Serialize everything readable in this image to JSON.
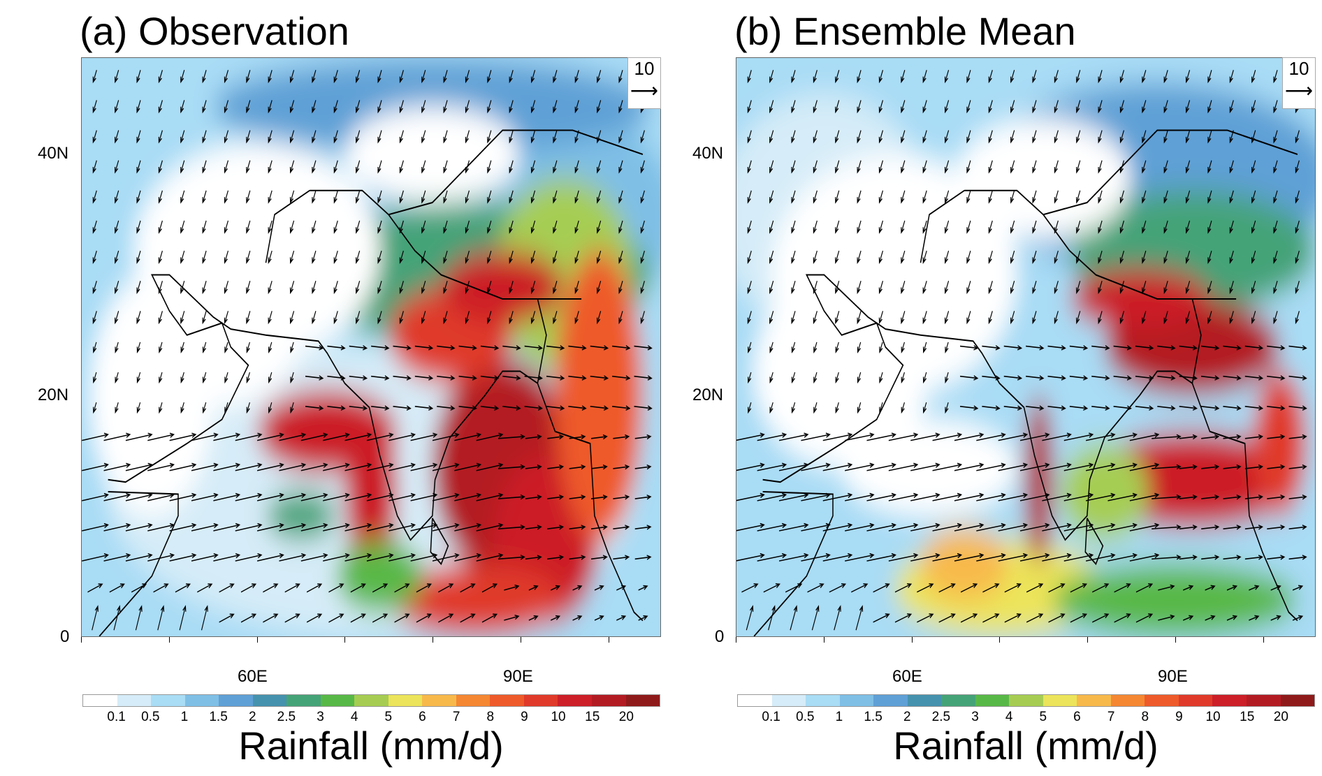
{
  "chart_data": [
    {
      "type": "heatmap",
      "title": "(a) Observation",
      "variable": "Rainfall (mm/d)",
      "overlay": "wind vectors",
      "reference_vector": "10",
      "x_ticks": [
        "60E",
        "90E"
      ],
      "y_ticks": [
        "40N",
        "20N",
        "0"
      ],
      "xlim": [
        40,
        106
      ],
      "ylim": [
        0,
        48
      ],
      "grid": false
    },
    {
      "type": "heatmap",
      "title": "(b) Ensemble Mean",
      "variable": "Rainfall (mm/d)",
      "overlay": "wind vectors",
      "reference_vector": "10",
      "x_ticks": [
        "60E",
        "90E"
      ],
      "y_ticks": [
        "40N",
        "20N",
        "0"
      ],
      "xlim": [
        40,
        106
      ],
      "ylim": [
        0,
        48
      ],
      "grid": false
    }
  ],
  "colorbar": {
    "title": "Rainfall (mm/d)",
    "levels": [
      "0.1",
      "0.5",
      "1",
      "1.5",
      "2",
      "2.5",
      "3",
      "4",
      "5",
      "6",
      "7",
      "8",
      "9",
      "10",
      "15",
      "20"
    ],
    "colors": [
      "#ffffff",
      "#d6ecf8",
      "#a9dcf5",
      "#7fbfe6",
      "#5fa0d6",
      "#4592ae",
      "#45a378",
      "#58b847",
      "#a6cd52",
      "#ece45a",
      "#f8b94b",
      "#f58732",
      "#ee5a2a",
      "#e03a2a",
      "#cc1f28",
      "#b31b22",
      "#8f1a1a"
    ]
  }
}
